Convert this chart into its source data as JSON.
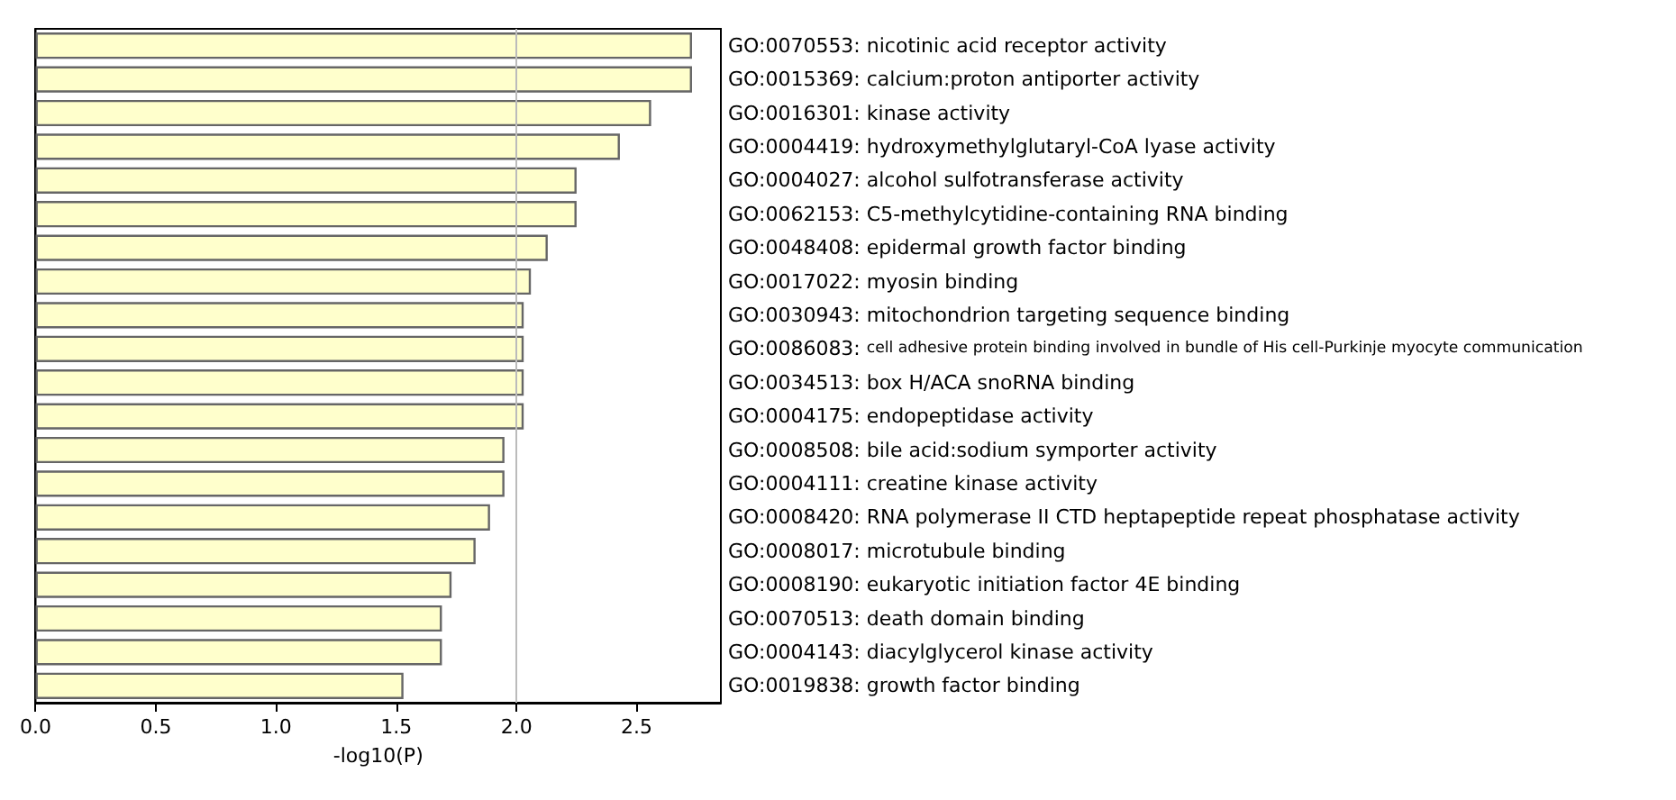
{
  "chart_data": {
    "type": "bar",
    "orientation": "horizontal",
    "xlabel": "-log10(P)",
    "categories": [
      "GO:0070553: nicotinic acid receptor activity",
      "GO:0015369: calcium:proton antiporter activity",
      "GO:0016301: kinase activity",
      "GO:0004419: hydroxymethylglutaryl-CoA lyase activity",
      "GO:0004027: alcohol sulfotransferase activity",
      "GO:0062153: C5-methylcytidine-containing RNA binding",
      "GO:0048408: epidermal growth factor binding",
      "GO:0017022: myosin binding",
      "GO:0030943: mitochondrion targeting sequence binding",
      "GO:0086083: cell adhesive protein binding involved in bundle of His cell-Purkinje myocyte communication",
      "GO:0034513: box H/ACA snoRNA binding",
      "GO:0004175: endopeptidase activity",
      "GO:0008508: bile acid:sodium symporter activity",
      "GO:0004111: creatine kinase activity",
      "GO:0008420: RNA polymerase II CTD heptapeptide repeat phosphatase activity",
      "GO:0008017: microtubule binding",
      "GO:0008190: eukaryotic initiation factor 4E binding",
      "GO:0070513: death domain binding",
      "GO:0004143: diacylglycerol kinase activity",
      "GO:0019838: growth factor binding"
    ],
    "values": [
      2.73,
      2.73,
      2.56,
      2.43,
      2.25,
      2.25,
      2.13,
      2.06,
      2.03,
      2.03,
      2.03,
      2.03,
      1.95,
      1.95,
      1.89,
      1.83,
      1.73,
      1.69,
      1.69,
      1.53
    ],
    "color": "#ffffcc",
    "xlim": [
      0,
      2.85
    ],
    "xticks": [
      {
        "value": 0,
        "label": "0.0"
      },
      0.5,
      {
        "value": 1,
        "label": "1.0"
      },
      1.5,
      {
        "value": 2,
        "label": "2.0"
      },
      2.5
    ],
    "ref_lines": [
      {
        "axis": "x",
        "value": 2.0,
        "color": "#bbbbbb"
      }
    ],
    "grid": false
  }
}
